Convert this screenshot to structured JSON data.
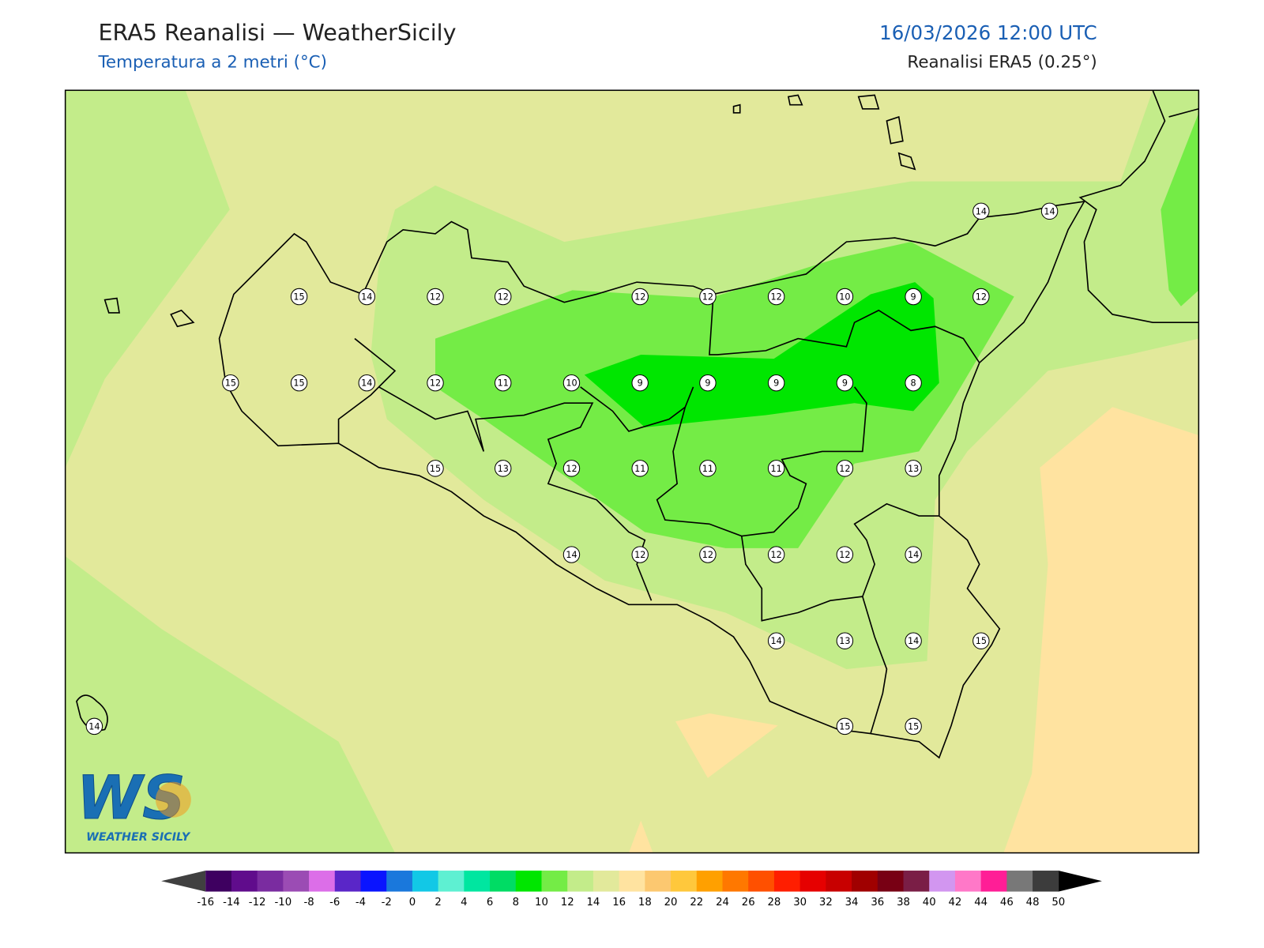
{
  "header": {
    "title": "ERA5 Reanalisi — WeatherSicily",
    "subtitle": "Temperatura a 2 metri (°C)",
    "datetime": "16/03/2026 12:00 UTC",
    "source": "Reanalisi ERA5 (0.25°)"
  },
  "stations": [
    15,
    14,
    12,
    12,
    12,
    12,
    12,
    10,
    9,
    12,
    15,
    15,
    14,
    12,
    11,
    10,
    9,
    9,
    9,
    9,
    8,
    15,
    13,
    12,
    11,
    11,
    11,
    12,
    13,
    14,
    12,
    12,
    12,
    12,
    14,
    14,
    13,
    14,
    15,
    14,
    15,
    15,
    14,
    14
  ],
  "logo": {
    "mark": "WS",
    "text": "WEATHER SICILY"
  },
  "colorbar": {
    "ticks": [
      -16,
      -14,
      -12,
      -10,
      -8,
      -6,
      -4,
      -2,
      0,
      2,
      4,
      6,
      8,
      10,
      12,
      14,
      16,
      18,
      20,
      22,
      24,
      26,
      28,
      30,
      32,
      34,
      36,
      38,
      40,
      42,
      44,
      46,
      48,
      50
    ],
    "colors": [
      "#3e0060",
      "#600c8c",
      "#7a2ca0",
      "#9b4cb4",
      "#dc6ee8",
      "#5a26c8",
      "#0a14ff",
      "#1a78dc",
      "#12c8e6",
      "#5ef0d2",
      "#00e6a0",
      "#00dc64",
      "#00e600",
      "#74ec46",
      "#c3ec8a",
      "#e2e99b",
      "#ffe3a0",
      "#fcc870",
      "#ffc83c",
      "#ffa000",
      "#ff7800",
      "#ff5000",
      "#ff1e00",
      "#e60000",
      "#c80000",
      "#a00000",
      "#780014",
      "#7a1e46",
      "#d296f0",
      "#ff78c8",
      "#ff1e96",
      "#787878",
      "#3c3c3c"
    ],
    "under": "#404040",
    "over": "#000000"
  }
}
